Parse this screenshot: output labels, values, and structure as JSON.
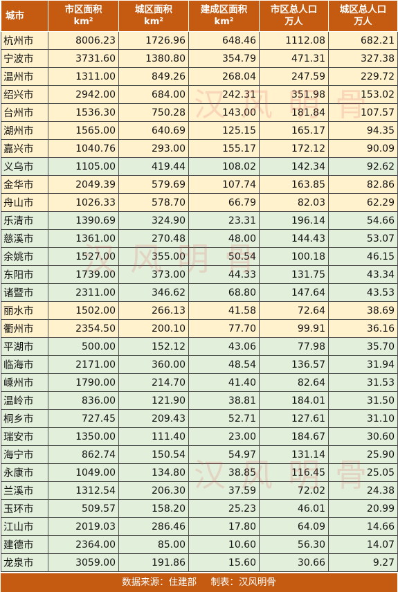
{
  "headers": [
    {
      "line1": "城市",
      "line2": ""
    },
    {
      "line1": "市区面积",
      "line2": "km²"
    },
    {
      "line1": "城区面积",
      "line2": "km²"
    },
    {
      "line1": "建成区面积",
      "line2": "km²"
    },
    {
      "line1": "市区总人口",
      "line2": "万人"
    },
    {
      "line1": "城区总人口",
      "line2": "万人"
    }
  ],
  "rows": [
    {
      "city": "杭州市",
      "a": "8006.23",
      "b": "1726.96",
      "c": "648.46",
      "d": "1112.08",
      "e": "682.21",
      "tone": "y"
    },
    {
      "city": "宁波市",
      "a": "3731.60",
      "b": "1380.80",
      "c": "354.79",
      "d": "471.31",
      "e": "327.38",
      "tone": "y"
    },
    {
      "city": "温州市",
      "a": "1311.00",
      "b": "849.26",
      "c": "268.04",
      "d": "247.59",
      "e": "229.72",
      "tone": "y"
    },
    {
      "city": "绍兴市",
      "a": "2942.00",
      "b": "684.00",
      "c": "242.31",
      "d": "351.98",
      "e": "153.02",
      "tone": "y"
    },
    {
      "city": "台州市",
      "a": "1536.30",
      "b": "750.28",
      "c": "143.00",
      "d": "181.84",
      "e": "107.57",
      "tone": "y"
    },
    {
      "city": "湖州市",
      "a": "1565.00",
      "b": "640.69",
      "c": "125.15",
      "d": "165.17",
      "e": "94.35",
      "tone": "y"
    },
    {
      "city": "嘉兴市",
      "a": "1040.76",
      "b": "293.00",
      "c": "155.17",
      "d": "172.12",
      "e": "90.09",
      "tone": "y"
    },
    {
      "city": "义乌市",
      "a": "1105.00",
      "b": "419.44",
      "c": "108.02",
      "d": "142.34",
      "e": "92.62",
      "tone": "g"
    },
    {
      "city": "金华市",
      "a": "2049.39",
      "b": "579.69",
      "c": "107.74",
      "d": "163.85",
      "e": "82.86",
      "tone": "y"
    },
    {
      "city": "舟山市",
      "a": "1026.33",
      "b": "578.70",
      "c": "66.79",
      "d": "82.03",
      "e": "62.29",
      "tone": "y"
    },
    {
      "city": "乐清市",
      "a": "1390.69",
      "b": "324.90",
      "c": "23.31",
      "d": "196.14",
      "e": "54.66",
      "tone": "g"
    },
    {
      "city": "慈溪市",
      "a": "1361.00",
      "b": "270.48",
      "c": "48.00",
      "d": "144.43",
      "e": "53.07",
      "tone": "g"
    },
    {
      "city": "余姚市",
      "a": "1527.00",
      "b": "355.00",
      "c": "50.54",
      "d": "100.18",
      "e": "46.15",
      "tone": "g"
    },
    {
      "city": "东阳市",
      "a": "1739.00",
      "b": "373.00",
      "c": "44.33",
      "d": "131.75",
      "e": "43.34",
      "tone": "g"
    },
    {
      "city": "诸暨市",
      "a": "2311.00",
      "b": "346.62",
      "c": "68.80",
      "d": "147.64",
      "e": "43.53",
      "tone": "g"
    },
    {
      "city": "丽水市",
      "a": "1502.00",
      "b": "266.13",
      "c": "41.58",
      "d": "72.64",
      "e": "38.69",
      "tone": "y"
    },
    {
      "city": "衢州市",
      "a": "2354.50",
      "b": "200.10",
      "c": "77.70",
      "d": "99.91",
      "e": "36.16",
      "tone": "y"
    },
    {
      "city": "平湖市",
      "a": "500.00",
      "b": "152.12",
      "c": "43.06",
      "d": "77.98",
      "e": "35.70",
      "tone": "g"
    },
    {
      "city": "临海市",
      "a": "2171.00",
      "b": "360.00",
      "c": "48.54",
      "d": "136.57",
      "e": "31.94",
      "tone": "g"
    },
    {
      "city": "嵊州市",
      "a": "1790.00",
      "b": "214.70",
      "c": "41.40",
      "d": "82.64",
      "e": "31.53",
      "tone": "g"
    },
    {
      "city": "温岭市",
      "a": "836.00",
      "b": "121.90",
      "c": "38.81",
      "d": "184.01",
      "e": "31.50",
      "tone": "g"
    },
    {
      "city": "桐乡市",
      "a": "727.45",
      "b": "209.43",
      "c": "52.71",
      "d": "127.61",
      "e": "31.10",
      "tone": "g"
    },
    {
      "city": "瑞安市",
      "a": "1350.00",
      "b": "111.40",
      "c": "23.00",
      "d": "184.67",
      "e": "30.60",
      "tone": "g"
    },
    {
      "city": "海宁市",
      "a": "862.74",
      "b": "150.54",
      "c": "54.97",
      "d": "131.14",
      "e": "25.90",
      "tone": "g"
    },
    {
      "city": "永康市",
      "a": "1049.00",
      "b": "134.80",
      "c": "38.85",
      "d": "116.45",
      "e": "25.05",
      "tone": "g"
    },
    {
      "city": "兰溪市",
      "a": "1312.54",
      "b": "206.30",
      "c": "37.59",
      "d": "72.02",
      "e": "24.38",
      "tone": "g"
    },
    {
      "city": "玉环市",
      "a": "509.57",
      "b": "158.20",
      "c": "25.23",
      "d": "46.01",
      "e": "20.99",
      "tone": "g"
    },
    {
      "city": "江山市",
      "a": "2019.03",
      "b": "286.46",
      "c": "17.80",
      "d": "64.09",
      "e": "14.66",
      "tone": "g"
    },
    {
      "city": "建德市",
      "a": "2364.00",
      "b": "85.00",
      "c": "10.60",
      "d": "56.30",
      "e": "14.07",
      "tone": "g"
    },
    {
      "city": "龙泉市",
      "a": "3059.00",
      "b": "191.86",
      "c": "15.60",
      "d": "30.66",
      "e": "9.27",
      "tone": "g"
    }
  ],
  "footer": {
    "source": "数据来源：住建部",
    "maker": "制表：汉风明骨"
  },
  "watermark": "汉风明骨",
  "colors": {
    "header": "#c55a11",
    "row_yellow": "#fff2cc",
    "row_green": "#e2efda"
  }
}
